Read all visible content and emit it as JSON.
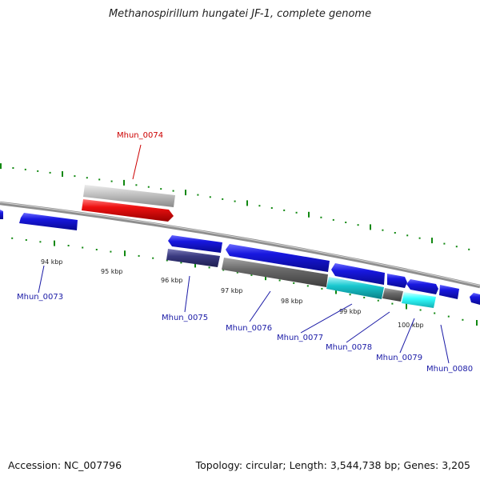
{
  "title": "Methanospirillum hungatei JF-1, complete genome",
  "footer": {
    "accession": "Accession: NC_007796",
    "summary": "Topology: circular; Length: 3,544,738 bp; Genes: 3,205"
  },
  "colors": {
    "forward": "#1818e0",
    "reverse_dark": "#3a3a80",
    "gray": "#6a6a6a",
    "light_gray": "#bdbdbd",
    "cyan": "#18c8d0",
    "highlight": "#ee1111",
    "tick": "#118811"
  },
  "scale_labels": [
    "94 kbp",
    "95 kbp",
    "96 kbp",
    "97 kbp",
    "98 kbp",
    "99 kbp",
    "100 kbp"
  ],
  "gene_labels": [
    "Mhun_0073",
    "Mhun_0074",
    "Mhun_0075",
    "Mhun_0076",
    "Mhun_0077",
    "Mhun_0078",
    "Mhun_0079",
    "Mhun_0080"
  ],
  "highlighted_gene": "Mhun_0074"
}
